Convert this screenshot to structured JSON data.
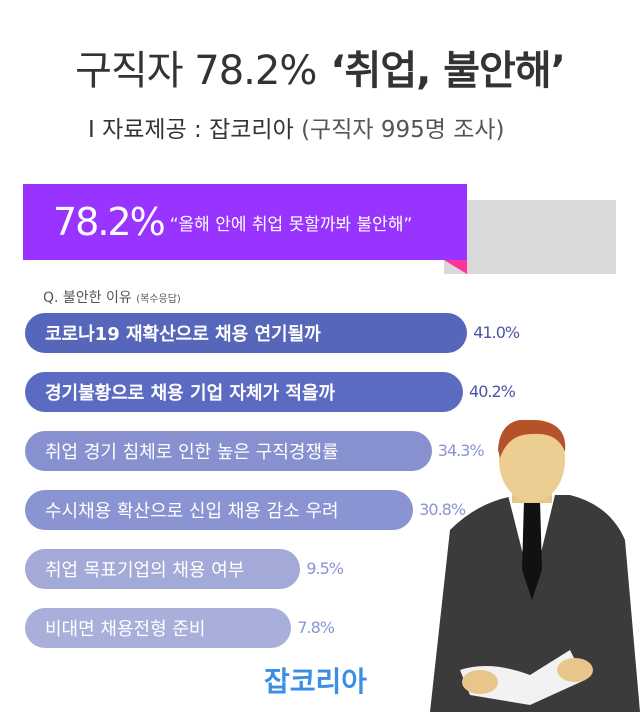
{
  "header": {
    "title_prefix": "구직자 78.2%",
    "title_quote": "‘취업, 불안해’",
    "source_label": "I 자료제공 : 잡코리아",
    "source_note": "(구직자 995명 조사)"
  },
  "headline": {
    "percent": "78.2%",
    "quote": "“올해 안에 취업 못할까봐 불안해”",
    "value": 78.2,
    "colors": {
      "fill": "#9933ff",
      "remainder": "#d9d9d9",
      "accent": "#ff3399"
    }
  },
  "question": {
    "label": "Q. 불안한 이유",
    "note": "(복수응답)"
  },
  "chart_data": {
    "type": "bar",
    "orientation": "horizontal",
    "categories": [
      "코로나19 재확산으로 채용 연기될까",
      "경기불황으로 채용 기업 자체가 적을까",
      "취업 경기 침체로 인한 높은 구직경쟁률",
      "수시채용 확산으로 신입 채용 감소 우려",
      "취업 목표기업의 채용 여부",
      "비대면 채용전형 준비"
    ],
    "values": [
      41.0,
      40.2,
      34.3,
      30.8,
      9.5,
      7.8
    ],
    "labels": [
      "41.0%",
      "40.2%",
      "34.3%",
      "30.8%",
      "9.5%",
      "7.8%"
    ],
    "colors": [
      "#5566bb",
      "#5b6bc2",
      "#8791d0",
      "#8a94d2",
      "#a3aad8",
      "#a8afda"
    ]
  },
  "brand": {
    "logo": "잡코리아"
  }
}
